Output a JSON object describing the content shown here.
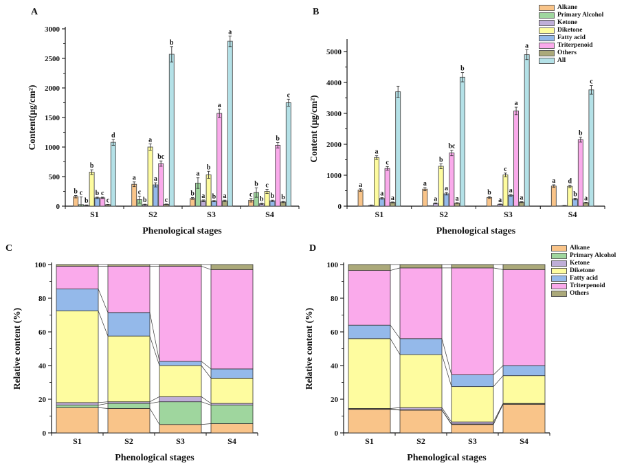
{
  "figure": {
    "panel_labels": {
      "A": "A",
      "B": "B",
      "C": "C",
      "D": "D"
    },
    "xlabel": "Phenological stages",
    "categories": [
      "S1",
      "S2",
      "S3",
      "S4"
    ]
  },
  "colors": {
    "Alkane": "#F9C489",
    "Primary Alcohol": "#9FD69E",
    "Ketone": "#BFAED8",
    "Diketone": "#FEFC9F",
    "Fatty acid": "#94B9EA",
    "Triterpenoid": "#FAAAEB",
    "Others": "#ABA97A",
    "All": "#B4E1E7"
  },
  "legend_ab": [
    "Alkane",
    "Primary Alcohol",
    "Ketone",
    "Diketone",
    "Fatty acid",
    "Triterpenoid",
    "Others",
    "All"
  ],
  "legend_d": [
    "Alkane",
    "Primary Alcohol",
    "Ketone",
    "Diketone",
    "Fatty acid",
    "Triterpenoid",
    "Others"
  ],
  "chart_data": [
    {
      "id": "A",
      "type": "bar",
      "title": "",
      "xlabel": "Phenological stages",
      "ylabel": "Content(μg/cm²)",
      "ylim": [
        0,
        3000
      ],
      "yticks": [
        0,
        500,
        1000,
        1500,
        2000,
        2500,
        3000
      ],
      "categories": [
        "S1",
        "S2",
        "S3",
        "S4"
      ],
      "legend_position": "top-right-outside",
      "grid": false,
      "series": [
        {
          "name": "Alkane",
          "values": [
            160,
            370,
            130,
            100
          ],
          "errors": [
            20,
            40,
            15,
            30
          ],
          "letters": [
            "b",
            "a",
            "b",
            "c"
          ]
        },
        {
          "name": "Primary Alcohol",
          "values": [
            25,
            110,
            390,
            230
          ],
          "errors": [
            130,
            60,
            90,
            80
          ],
          "letters": [
            "c",
            "c",
            "a",
            "b"
          ]
        },
        {
          "name": "Ketone",
          "values": [
            15,
            25,
            90,
            40
          ],
          "errors": [
            6,
            8,
            15,
            10
          ],
          "letters": [
            "b",
            "b",
            "a",
            "b"
          ]
        },
        {
          "name": "Diketone",
          "values": [
            575,
            1000,
            530,
            250
          ],
          "errors": [
            40,
            55,
            60,
            35
          ],
          "letters": [
            "b",
            "a",
            "b",
            "c"
          ]
        },
        {
          "name": "Fatty acid",
          "values": [
            140,
            360,
            85,
            90
          ],
          "errors": [
            12,
            35,
            10,
            12
          ],
          "letters": [
            "b",
            "a",
            "b",
            "b"
          ]
        },
        {
          "name": "Triterpenoid",
          "values": [
            140,
            720,
            1570,
            1030
          ],
          "errors": [
            12,
            45,
            70,
            45
          ],
          "letters": [
            "c",
            "bc",
            "a",
            "b"
          ]
        },
        {
          "name": "Others",
          "values": [
            25,
            30,
            90,
            70
          ],
          "errors": [
            5,
            6,
            12,
            10
          ],
          "letters": [
            "c",
            "c",
            "a",
            "b"
          ]
        },
        {
          "name": "All",
          "values": [
            1080,
            2570,
            2790,
            1750
          ],
          "errors": [
            50,
            130,
            90,
            60
          ],
          "letters": [
            "d",
            "b",
            "a",
            "c"
          ]
        }
      ]
    },
    {
      "id": "B",
      "type": "bar",
      "title": "",
      "xlabel": "Phenological stages",
      "ylabel": "Content (μg/cm²)",
      "ylim": [
        0,
        5000
      ],
      "yticks": [
        0,
        1000,
        2000,
        3000,
        4000,
        5000
      ],
      "categories": [
        "S1",
        "S2",
        "S3",
        "S4"
      ],
      "grid": false,
      "series": [
        {
          "name": "Alkane",
          "values": [
            520,
            550,
            280,
            650
          ],
          "errors": [
            40,
            50,
            30,
            40
          ],
          "letters": [
            "a",
            "a",
            "b",
            "a"
          ]
        },
        {
          "name": "Primary Alcohol",
          "values": [
            10,
            15,
            10,
            10
          ],
          "errors": [
            0,
            0,
            0,
            0
          ],
          "letters": [
            "",
            "",
            "",
            ""
          ]
        },
        {
          "name": "Ketone",
          "values": [
            30,
            90,
            60,
            20
          ],
          "errors": [
            8,
            15,
            10,
            5
          ],
          "letters": [
            "",
            "a",
            "a",
            ""
          ]
        },
        {
          "name": "Diketone",
          "values": [
            1570,
            1290,
            1010,
            640
          ],
          "errors": [
            60,
            80,
            60,
            40
          ],
          "letters": [
            "a",
            "b",
            "c",
            "d"
          ]
        },
        {
          "name": "Fatty acid",
          "values": [
            250,
            400,
            350,
            230
          ],
          "errors": [
            25,
            40,
            30,
            25
          ],
          "letters": [
            "a",
            "a",
            "a",
            "b"
          ]
        },
        {
          "name": "Triterpenoid",
          "values": [
            1220,
            1720,
            3080,
            2150
          ],
          "errors": [
            60,
            90,
            120,
            80
          ],
          "letters": [
            "c",
            "bc",
            "a",
            "b"
          ]
        },
        {
          "name": "Others",
          "values": [
            120,
            100,
            130,
            110
          ],
          "errors": [
            15,
            12,
            15,
            12
          ],
          "letters": [
            "a",
            "a",
            "a",
            "a"
          ]
        },
        {
          "name": "All",
          "values": [
            3700,
            4170,
            4900,
            3760
          ],
          "errors": [
            180,
            150,
            160,
            140
          ],
          "letters": [
            "",
            "b",
            "a",
            "c"
          ]
        }
      ]
    },
    {
      "id": "C",
      "type": "stacked-bar",
      "title": "",
      "xlabel": "Phenological stages",
      "ylabel": "Relative content (%)",
      "ylim": [
        0,
        100
      ],
      "yticks": [
        0,
        20,
        40,
        60,
        80,
        100
      ],
      "categories": [
        "S1",
        "S2",
        "S3",
        "S4"
      ],
      "grid": false,
      "series": [
        {
          "name": "Alkane",
          "values": [
            15,
            14.5,
            5,
            5.5
          ]
        },
        {
          "name": "Primary Alcohol",
          "values": [
            1.5,
            3,
            13.5,
            11
          ]
        },
        {
          "name": "Ketone",
          "values": [
            1.5,
            1,
            3,
            1
          ]
        },
        {
          "name": "Diketone",
          "values": [
            54.5,
            39,
            18.5,
            15
          ]
        },
        {
          "name": "Fatty acid",
          "values": [
            13,
            14,
            2.5,
            5.5
          ]
        },
        {
          "name": "Triterpenoid",
          "values": [
            13.5,
            27.5,
            56.5,
            59
          ]
        },
        {
          "name": "Others",
          "values": [
            1,
            1,
            1,
            3
          ]
        }
      ]
    },
    {
      "id": "D",
      "type": "stacked-bar",
      "title": "",
      "xlabel": "Phenological stages",
      "ylabel": "Relative content (%)",
      "ylim": [
        0,
        100
      ],
      "yticks": [
        0,
        20,
        40,
        60,
        80,
        100
      ],
      "categories": [
        "S1",
        "S2",
        "S3",
        "S4"
      ],
      "grid": false,
      "series": [
        {
          "name": "Alkane",
          "values": [
            14,
            13.5,
            5,
            17
          ]
        },
        {
          "name": "Primary Alcohol",
          "values": [
            0.2,
            0.2,
            0.3,
            0.2
          ]
        },
        {
          "name": "Ketone",
          "values": [
            0.3,
            1.3,
            1.2,
            0.3
          ]
        },
        {
          "name": "Diketone",
          "values": [
            41.5,
            31.5,
            21,
            16.5
          ]
        },
        {
          "name": "Fatty acid",
          "values": [
            8,
            9.5,
            7,
            6
          ]
        },
        {
          "name": "Triterpenoid",
          "values": [
            32.5,
            42,
            63.5,
            57
          ]
        },
        {
          "name": "Others",
          "values": [
            3.5,
            2,
            2,
            3
          ]
        }
      ]
    }
  ]
}
